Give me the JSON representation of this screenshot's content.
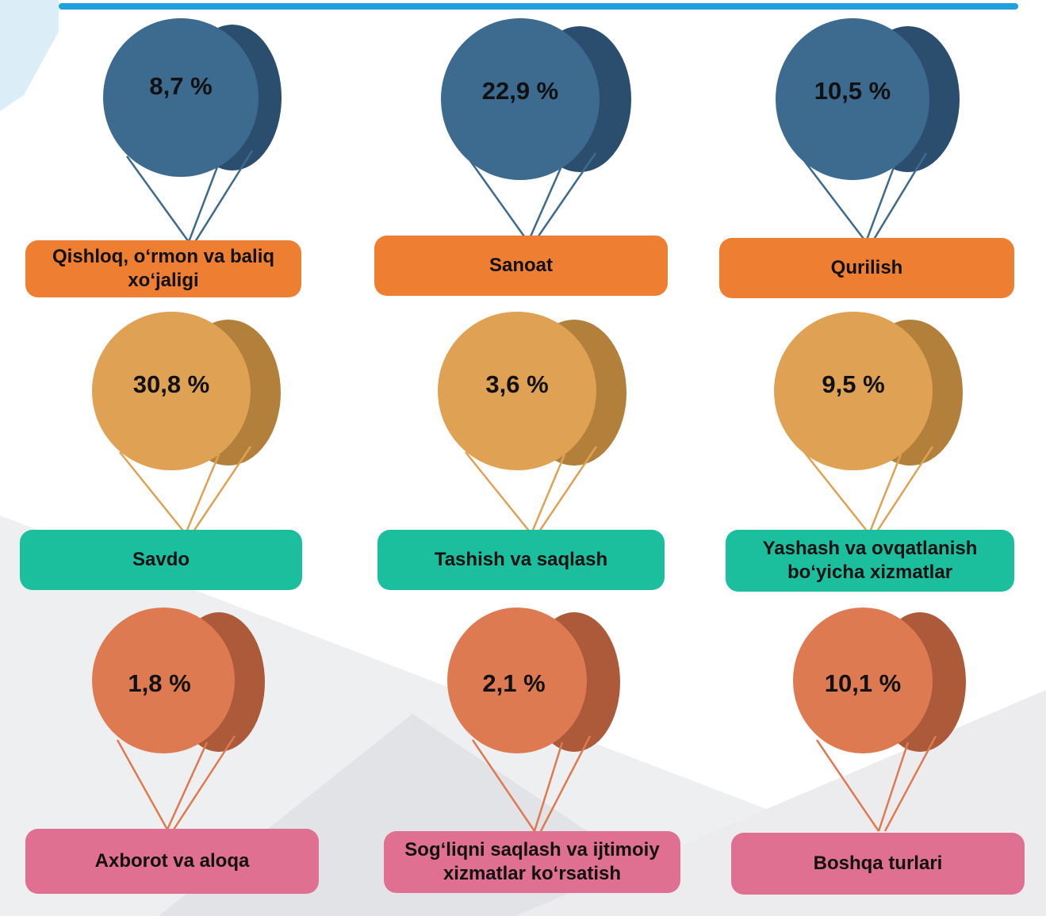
{
  "colors": {
    "row1_balloon": "#3d6a8f",
    "row1_balloon_dark": "#2b4e6e",
    "row2_balloon": "#dfa254",
    "row2_balloon_dark": "#b3803b",
    "row3_balloon": "#de7a52",
    "row3_balloon_dark": "#ad5a3a",
    "row1_label": "#ee7e32",
    "row2_label": "#1cbf9d",
    "row3_label": "#df7092",
    "accent_bar": "#1ea0dc"
  },
  "items": [
    {
      "percent": "8,7 %",
      "label": "Qishloq, o‘rmon va baliq xo‘jaligi"
    },
    {
      "percent": "22,9 %",
      "label": "Sanoat"
    },
    {
      "percent": "10,5 %",
      "label": "Qurilish"
    },
    {
      "percent": "30,8 %",
      "label": "Savdo"
    },
    {
      "percent": "3,6 %",
      "label": "Tashish va saqlash"
    },
    {
      "percent": "9,5 %",
      "label": "Yashash va ovqatlanish bo‘yicha xizmatlar"
    },
    {
      "percent": "1,8 %",
      "label": "Axborot va aloqa"
    },
    {
      "percent": "2,1 %",
      "label": "Sog‘liqni saqlash va ijtimoiy xizmatlar ko‘rsatish"
    },
    {
      "percent": "10,1 %",
      "label": "Boshqa turlari"
    }
  ]
}
